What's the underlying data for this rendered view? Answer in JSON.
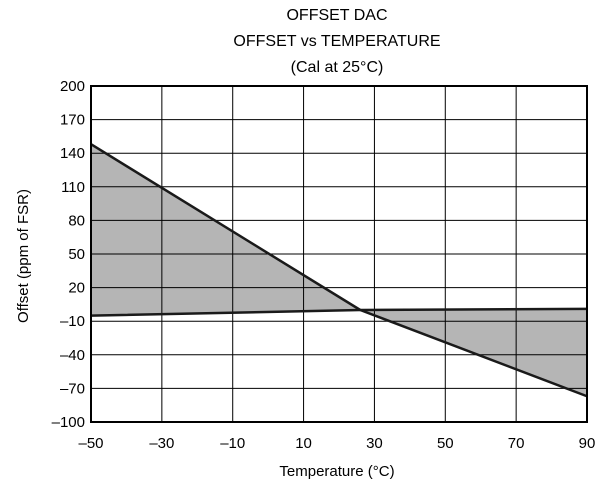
{
  "chart_data": {
    "type": "area",
    "title": [
      "OFFSET DAC",
      "OFFSET vs TEMPERATURE",
      "(Cal at 25°C)"
    ],
    "xlabel": "Temperature (°C)",
    "ylabel": "Offset (ppm of FSR)",
    "xlim": [
      -50,
      90
    ],
    "ylim": [
      -100,
      200
    ],
    "xticks": [
      -50,
      -30,
      -10,
      10,
      30,
      50,
      70,
      90
    ],
    "xtick_labels": [
      "–50",
      "–30",
      "–10",
      "10",
      "30",
      "50",
      "70",
      "90"
    ],
    "yticks": [
      200,
      170,
      140,
      110,
      80,
      50,
      20,
      -10,
      -40,
      -70,
      -100
    ],
    "ytick_labels": [
      "200",
      "170",
      "140",
      "110",
      "80",
      "50",
      "20",
      "–10",
      "–40",
      "–70",
      "–100"
    ],
    "grid": true,
    "series": [
      {
        "x": [
          -50,
          26,
          90
        ],
        "y": [
          148,
          0,
          -77
        ]
      },
      {
        "x": [
          -50,
          26,
          90
        ],
        "y": [
          -5,
          0,
          1
        ]
      }
    ],
    "fill_between": true,
    "fill_color": "#b5b5b5",
    "line_color": "#1a1a1a"
  }
}
